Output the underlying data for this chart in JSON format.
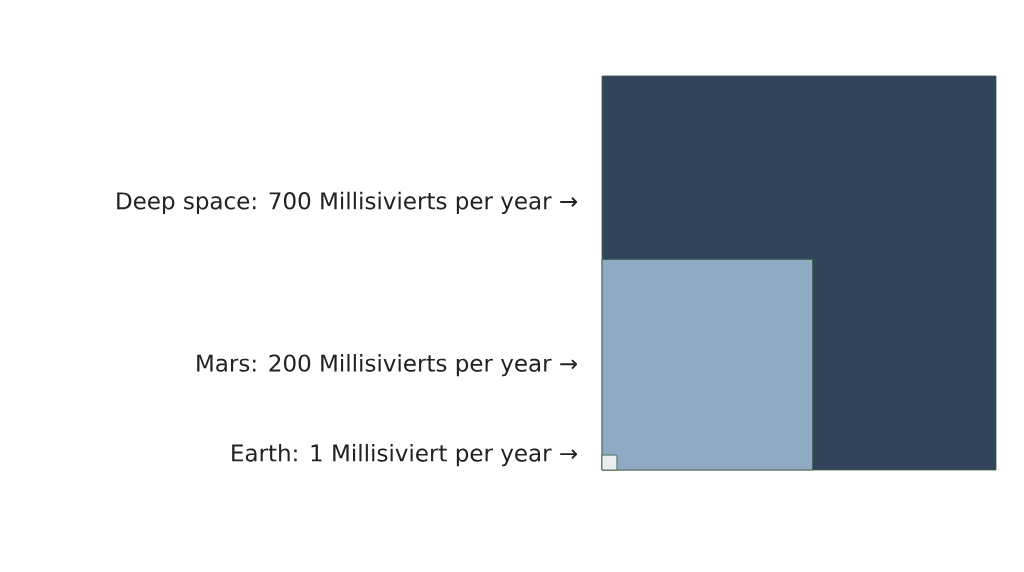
{
  "chart_data": {
    "type": "other",
    "categories": [
      "Deep space",
      "Mars",
      "Earth"
    ],
    "values": [
      700,
      200,
      1
    ],
    "value_labels": [
      ": 700 Millisivierts per year →",
      ": 200 Millisivierts per year →",
      ": 1 Millisiviert per year →"
    ],
    "colors": [
      "#324459",
      "#8faac3",
      "#e8eef0"
    ]
  }
}
